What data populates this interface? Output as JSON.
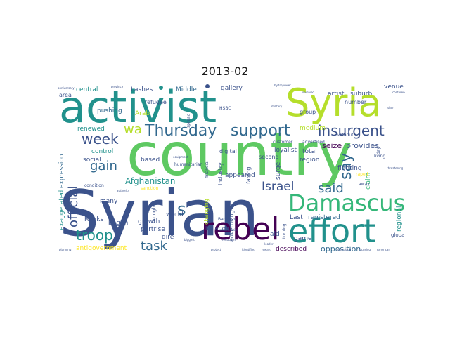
{
  "figure": {
    "title": "2013-02"
  },
  "palette": {
    "navy": "#3b528b",
    "teal": "#21918c",
    "green": "#5ec962",
    "lime": "#b5de2b",
    "purple": "#440154",
    "darkblue": "#31688e",
    "seafoam": "#35b779",
    "yellow": "#fde725"
  },
  "words": [
    {
      "text": "country",
      "color": "#5ec962",
      "weight": 1.0
    },
    {
      "text": "Syrian",
      "color": "#3b528b",
      "weight": 0.95
    },
    {
      "text": "activist",
      "color": "#21918c",
      "weight": 0.8
    },
    {
      "text": "Syria",
      "color": "#b5de2b",
      "weight": 0.65
    },
    {
      "text": "effort",
      "color": "#21918c",
      "weight": 0.55
    },
    {
      "text": "rebel",
      "color": "#440154",
      "weight": 0.52
    },
    {
      "text": "Damascus",
      "color": "#35b779",
      "weight": 0.42
    },
    {
      "text": "Thursday",
      "color": "#31688e",
      "weight": 0.3
    },
    {
      "text": "support",
      "color": "#31688e",
      "weight": 0.3
    },
    {
      "text": "insurgent",
      "color": "#3b528b",
      "weight": 0.26
    },
    {
      "text": "say",
      "color": "#31688e",
      "weight": 0.26
    },
    {
      "text": "week",
      "color": "#3b528b",
      "weight": 0.24
    },
    {
      "text": "troop",
      "color": "#21918c",
      "weight": 0.24
    },
    {
      "text": "official",
      "color": "#3b528b",
      "weight": 0.22
    },
    {
      "text": "gain",
      "color": "#31688e",
      "weight": 0.21
    },
    {
      "text": "said",
      "color": "#31688e",
      "weight": 0.2
    },
    {
      "text": "Israel",
      "color": "#3b528b",
      "weight": 0.2
    },
    {
      "text": "task",
      "color": "#31688e",
      "weight": 0.2
    },
    {
      "text": "s",
      "color": "#31688e",
      "weight": 0.26
    },
    {
      "text": "wa",
      "color": "#b5de2b",
      "weight": 0.2
    },
    {
      "text": "Afghanistan",
      "color": "#21918c",
      "weight": 0.14
    },
    {
      "text": "seize",
      "color": "#440154",
      "weight": 0.12
    },
    {
      "text": "provides",
      "color": "#3b528b",
      "weight": 0.12
    },
    {
      "text": "opposition",
      "color": "#31688e",
      "weight": 0.12
    },
    {
      "text": "antigovernment",
      "color": "#fde725",
      "weight": 0.1
    },
    {
      "text": "expression",
      "color": "#31688e",
      "weight": 0.1
    },
    {
      "text": "exaggerated",
      "color": "#21918c",
      "weight": 0.1
    },
    {
      "text": "pushing",
      "color": "#31688e",
      "weight": 0.09
    },
    {
      "text": "renewed",
      "color": "#21918c",
      "weight": 0.09
    },
    {
      "text": "central",
      "color": "#21918c",
      "weight": 0.09
    },
    {
      "text": "Lashes",
      "color": "#3b528b",
      "weight": 0.09
    },
    {
      "text": "Middle",
      "color": "#31688e",
      "weight": 0.09
    },
    {
      "text": "gallery",
      "color": "#3b528b",
      "weight": 0.09
    },
    {
      "text": "artist",
      "color": "#3b528b",
      "weight": 0.09
    },
    {
      "text": "suburb",
      "color": "#3b528b",
      "weight": 0.09
    },
    {
      "text": "venue",
      "color": "#3b528b",
      "weight": 0.09
    },
    {
      "text": "medium",
      "color": "#b5de2b",
      "weight": 0.09
    },
    {
      "text": "total",
      "color": "#3b528b",
      "weight": 0.09
    },
    {
      "text": "region",
      "color": "#3b528b",
      "weight": 0.09
    },
    {
      "text": "claim",
      "color": "#35b779",
      "weight": 0.09
    },
    {
      "text": "regional",
      "color": "#21918c",
      "weight": 0.09
    },
    {
      "text": "appeared",
      "color": "#3b528b",
      "weight": 0.09
    },
    {
      "text": "loyalist",
      "color": "#3b528b",
      "weight": 0.09
    },
    {
      "text": "surge",
      "color": "#3b528b",
      "weight": 0.09
    },
    {
      "text": "control",
      "color": "#21918c",
      "weight": 0.09
    },
    {
      "text": "social",
      "color": "#3b528b",
      "weight": 0.09
    },
    {
      "text": "based",
      "color": "#3b528b",
      "weight": 0.09
    },
    {
      "text": "growth",
      "color": "#3b528b",
      "weight": 0.09
    },
    {
      "text": "world",
      "color": "#3b528b",
      "weight": 0.09
    },
    {
      "text": "partrise",
      "color": "#3b528b",
      "weight": 0.09
    },
    {
      "text": "dire",
      "color": "#3b528b",
      "weight": 0.09
    },
    {
      "text": "begun",
      "color": "#3b528b",
      "weight": 0.09
    },
    {
      "text": "many",
      "color": "#3b528b",
      "weight": 0.09
    },
    {
      "text": "Ranks",
      "color": "#3b528b",
      "weight": 0.09
    },
    {
      "text": "Arab",
      "color": "#b5de2b",
      "weight": 0.09
    },
    {
      "text": "refugee",
      "color": "#3b528b",
      "weight": 0.08
    },
    {
      "text": "area",
      "color": "#3b528b",
      "weight": 0.08
    },
    {
      "text": "described",
      "color": "#440154",
      "weight": 0.09
    },
    {
      "text": "game",
      "color": "#3b528b",
      "weight": 0.09
    },
    {
      "text": "registered",
      "color": "#31688e",
      "weight": 0.09
    },
    {
      "text": "Last",
      "color": "#3b528b",
      "weight": 0.09
    },
    {
      "text": "aid",
      "color": "#3b528b",
      "weight": 0.09
    },
    {
      "text": "fighting",
      "color": "#3b528b",
      "weight": 0.09
    },
    {
      "text": "isolation",
      "color": "#3b528b",
      "weight": 0.08
    },
    {
      "text": "advertising",
      "color": "#3b528b",
      "weight": 0.08
    },
    {
      "text": "digital",
      "color": "#3b528b",
      "weight": 0.08
    },
    {
      "text": "industry",
      "color": "#3b528b",
      "weight": 0.08
    },
    {
      "text": "second",
      "color": "#3b528b",
      "weight": 0.08
    },
    {
      "text": "facing",
      "color": "#3b528b",
      "weight": 0.08
    },
    {
      "text": "group",
      "color": "#3b528b",
      "weight": 0.08
    },
    {
      "text": "number",
      "color": "#3b528b",
      "weight": 0.08
    },
    {
      "text": "global",
      "color": "#3b528b",
      "weight": 0.07
    },
    {
      "text": "changing",
      "color": "#b5de2b",
      "weight": 0.08
    },
    {
      "text": "brought",
      "color": "#3b528b",
      "weight": 0.07
    },
    {
      "text": "sanction",
      "color": "#fde725",
      "weight": 0.06
    },
    {
      "text": "humanitarian",
      "color": "#3b528b",
      "weight": 0.06
    },
    {
      "text": "condition",
      "color": "#3b528b",
      "weight": 0.06
    },
    {
      "text": "Barclays",
      "color": "#3b528b",
      "weight": 0.06
    },
    {
      "text": "HSBC",
      "color": "#3b528b",
      "weight": 0.06
    },
    {
      "text": "spread",
      "color": "#3b528b",
      "weight": 0.06
    },
    {
      "text": "financial",
      "color": "#3b528b",
      "weight": 0.06
    },
    {
      "text": "customer",
      "color": "#3b528b",
      "weight": 0.06
    },
    {
      "text": "turning",
      "color": "#3b528b",
      "weight": 0.06
    },
    {
      "text": "advertised",
      "color": "#3b528b",
      "weight": 0.06
    },
    {
      "text": "without",
      "color": "#3b528b",
      "weight": 0.06
    },
    {
      "text": "living",
      "color": "#3b528b",
      "weight": 0.06
    },
    {
      "text": "raped",
      "color": "#fde725",
      "weight": 0.06
    },
    {
      "text": "away",
      "color": "#3b528b",
      "weight": 0.06
    },
    {
      "text": "day",
      "color": "#3b528b",
      "weight": 0.06
    },
    {
      "text": "equipment",
      "color": "#3b528b",
      "weight": 0.04
    },
    {
      "text": "military",
      "color": "#3b528b",
      "weight": 0.04
    },
    {
      "text": "assassination",
      "color": "#3b528b",
      "weight": 0.04
    },
    {
      "text": "authority",
      "color": "#3b528b",
      "weight": 0.04
    },
    {
      "text": "biggest",
      "color": "#3b528b",
      "weight": 0.04
    },
    {
      "text": "American",
      "color": "#3b528b",
      "weight": 0.04
    },
    {
      "text": "identified",
      "color": "#3b528b",
      "weight": 0.04
    },
    {
      "text": "reduction",
      "color": "#3b528b",
      "weight": 0.04
    },
    {
      "text": "operation",
      "color": "#3b528b",
      "weight": 0.04
    },
    {
      "text": "planning",
      "color": "#3b528b",
      "weight": 0.04
    },
    {
      "text": "hydropower",
      "color": "#3b528b",
      "weight": 0.04
    },
    {
      "text": "province",
      "color": "#3b528b",
      "weight": 0.04
    },
    {
      "text": "anniversary",
      "color": "#3b528b",
      "weight": 0.04
    },
    {
      "text": "conference",
      "color": "#3b528b",
      "weight": 0.04
    },
    {
      "text": "threatening",
      "color": "#3b528b",
      "weight": 0.04
    },
    {
      "text": "focusing",
      "color": "#3b528b",
      "weight": 0.04
    },
    {
      "text": "reward",
      "color": "#3b528b",
      "weight": 0.04
    },
    {
      "text": "protect",
      "color": "#3b528b",
      "weight": 0.04
    },
    {
      "text": "involved",
      "color": "#3b528b",
      "weight": 0.04
    },
    {
      "text": "leader",
      "color": "#3b528b",
      "weight": 0.04
    },
    {
      "text": "Islam",
      "color": "#3b528b",
      "weight": 0.04
    }
  ]
}
